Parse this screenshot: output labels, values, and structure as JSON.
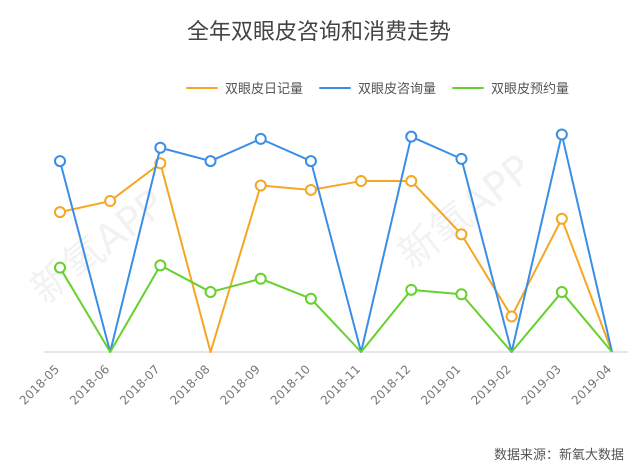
{
  "title": "全年双眼皮咨询和消费走势",
  "source": "数据来源：新氧大数据",
  "watermark": "新氧APP",
  "chart_data": {
    "type": "line",
    "categories": [
      "2018-05",
      "2018-06",
      "2018-07",
      "2018-08",
      "2018-09",
      "2018-10",
      "2018-11",
      "2018-12",
      "2019-01",
      "2019-02",
      "2019-03",
      "2019-04"
    ],
    "series": [
      {
        "name": "双眼皮日记量",
        "color": "#F5A623",
        "values": [
          63,
          68,
          85,
          0,
          75,
          73,
          77,
          77,
          53,
          16,
          60,
          0
        ]
      },
      {
        "name": "双眼皮咨询量",
        "color": "#3A8EE6",
        "values": [
          86,
          0,
          92,
          86,
          96,
          86,
          0,
          97,
          87,
          0,
          98,
          0
        ]
      },
      {
        "name": "双眼皮预约量",
        "color": "#66D12B",
        "values": [
          38,
          0,
          39,
          27,
          33,
          24,
          0,
          28,
          26,
          0,
          27,
          0
        ]
      }
    ],
    "ylim": [
      0,
      100
    ],
    "grid": false,
    "legend_position": "top-right"
  }
}
